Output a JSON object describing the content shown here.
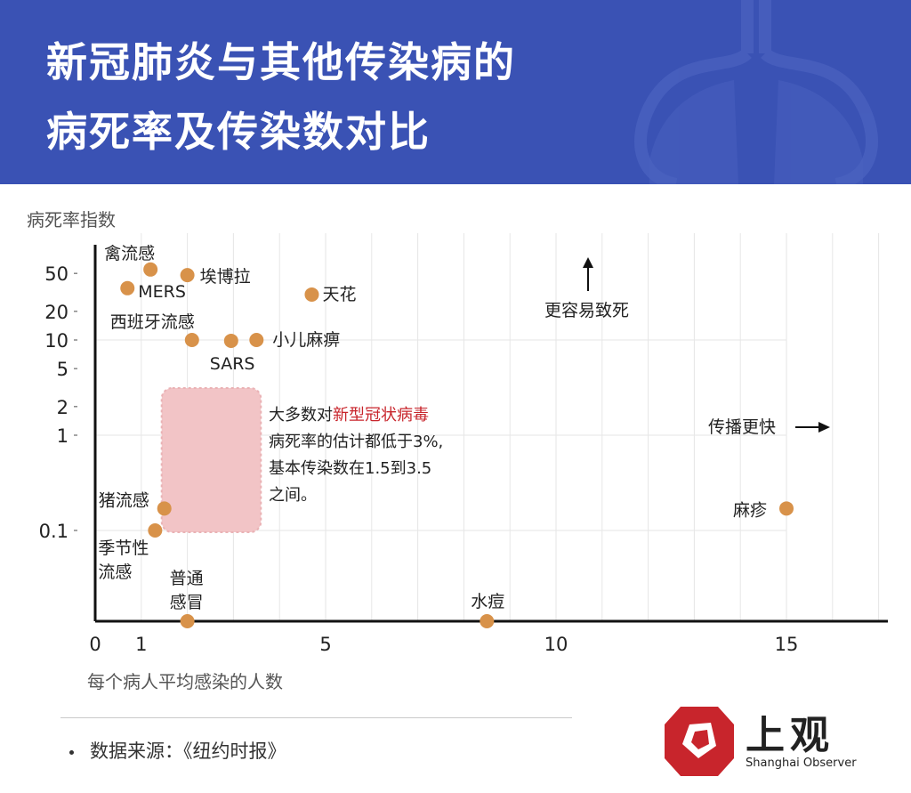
{
  "header": {
    "title_line1": "新冠肺炎与其他传染病的",
    "title_line2": "病死率及传染数对比",
    "background_color": "#3a52b4"
  },
  "chart_data": {
    "type": "scatter",
    "ylabel": "病死率指数",
    "xlabel": "每个病人平均感染的人数",
    "x_ticks": [
      "0",
      "1",
      "5",
      "10",
      "15"
    ],
    "x_tick_values": [
      0,
      1,
      5,
      10,
      15
    ],
    "xlim": [
      0,
      17.2
    ],
    "y_scale": "log",
    "y_ticks": [
      "50",
      "20",
      "10",
      "5",
      "2",
      "1",
      "0.1"
    ],
    "y_tick_values": [
      50,
      20,
      10,
      5,
      2,
      1,
      0.1
    ],
    "grid": true,
    "marker_color": "#d8924a",
    "points": [
      {
        "label": "禽流感",
        "x": 1.2,
        "y": 55
      },
      {
        "label": "埃博拉",
        "x": 2.0,
        "y": 48
      },
      {
        "label": "MERS",
        "x": 0.7,
        "y": 35
      },
      {
        "label": "天花",
        "x": 4.7,
        "y": 30
      },
      {
        "label": "西班牙流感",
        "x": 2.1,
        "y": 10
      },
      {
        "label": "SARS",
        "x": 2.95,
        "y": 9.8
      },
      {
        "label": "小儿麻痹",
        "x": 3.5,
        "y": 10
      },
      {
        "label": "猪流感",
        "x": 1.5,
        "y": 0.17
      },
      {
        "label": "季节性\n流感",
        "x": 1.3,
        "y": 0.1
      },
      {
        "label": "麻疹",
        "x": 15,
        "y": 0.17
      },
      {
        "label": "普通\n感冒",
        "x": 2.0,
        "y": 0.01
      },
      {
        "label": "水痘",
        "x": 8.5,
        "y": 0.01
      }
    ],
    "region": {
      "x_range": [
        1.5,
        3.5
      ],
      "y_range": [
        0.1,
        3
      ],
      "color": "#f2c4c6",
      "note_prefix": "大多数对",
      "note_highlight": "新型冠状病毒",
      "note_highlight_color": "#c8252c",
      "note_lines": [
        "病死率的估计都低于3%,",
        "基本传染数在1.5到3.5",
        "之间。"
      ]
    },
    "annotations": {
      "deadlier": "更容易致死",
      "faster": "传播更快"
    }
  },
  "footer": {
    "source": "数据来源：《纽约时报》",
    "logo_text": "上观",
    "logo_sub": "Shanghai Observer",
    "logo_color": "#c8252c"
  }
}
